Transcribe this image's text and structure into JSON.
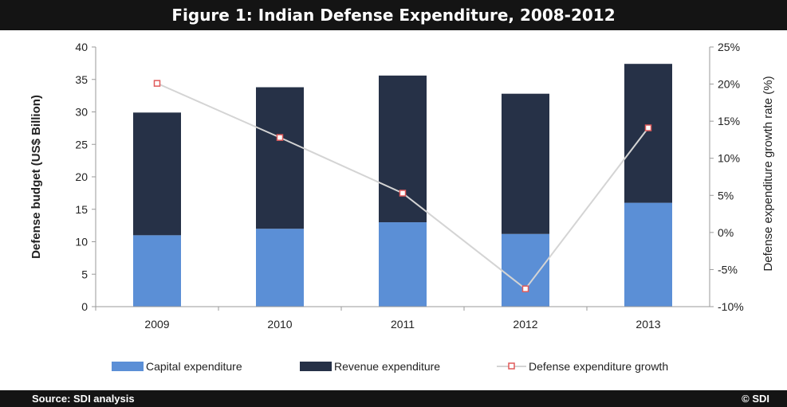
{
  "title": "Figure 1: Indian Defense Expenditure, 2008-2012",
  "footer": {
    "source": "Source: SDI analysis",
    "copyright": "© SDI"
  },
  "colors": {
    "capital": "#5b8fd6",
    "revenue": "#263147",
    "growth_line": "#d4d4d4",
    "growth_marker": "#e05a5a"
  },
  "chart_data": {
    "type": "bar",
    "stacked": true,
    "categories": [
      "2009",
      "2010",
      "2011",
      "2012",
      "2013"
    ],
    "series": [
      {
        "name": "Capital expenditure",
        "values": [
          11,
          12,
          13,
          11.2,
          16
        ]
      },
      {
        "name": "Revenue expenditure",
        "values": [
          18.9,
          21.8,
          22.6,
          21.6,
          21.4
        ]
      }
    ],
    "line_series": {
      "name": "Defense expenditure growth",
      "axis": "right",
      "values": [
        20.1,
        12.8,
        5.3,
        -7.6,
        14.1
      ]
    },
    "ylabel": "Defense budget (US$ Billion)",
    "ylim": [
      0,
      40
    ],
    "yticks": [
      "0",
      "5",
      "10",
      "15",
      "20",
      "25",
      "30",
      "35",
      "40"
    ],
    "ylabel_right": "Defense expenditure growth rate (%)",
    "ylim_right": [
      -10,
      25
    ],
    "yticks_right": [
      "-10%",
      "-5%",
      "0%",
      "5%",
      "10%",
      "15%",
      "20%",
      "25%"
    ],
    "grid": false,
    "legend_position": "bottom"
  }
}
